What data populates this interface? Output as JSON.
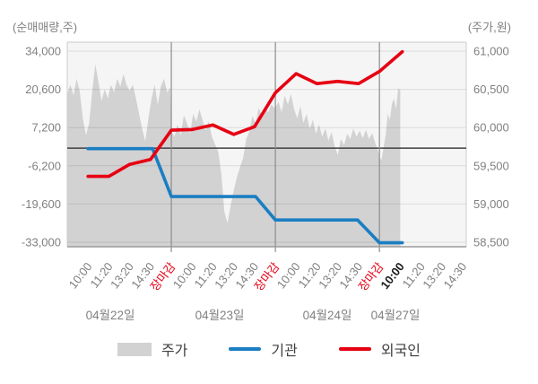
{
  "colors": {
    "red": "#e60012",
    "blue": "#1b7ec2",
    "area": "#d2d2d2",
    "plot_bg": "#f5f5f5",
    "frame": "#cccccc",
    "grid": "#d8d8d8",
    "zero_line": "#3f3f3f",
    "boundary": "#8c8c8c",
    "axis_line": "#9a9a9a",
    "tick_text": "#808080",
    "current_label": "#1a1a1a"
  },
  "legend": {
    "price_label": "주가",
    "institutions_label": "기관",
    "foreigners_label": "외국인"
  },
  "chart_data": {
    "type": "area+line combo (intraday price area on right axis, cumulative net-trading lines on left axis)",
    "left_axis": {
      "title": "(순매매량,주)",
      "range": [
        -33000,
        34000
      ],
      "ticks": [
        {
          "value": 34000,
          "label": "34,000"
        },
        {
          "value": 20600,
          "label": "20,600"
        },
        {
          "value": 7200,
          "label": "7,200"
        },
        {
          "value": -6200,
          "label": "-6,200"
        },
        {
          "value": -19600,
          "label": "-19,600"
        },
        {
          "value": -33000,
          "label": "-33,000"
        }
      ]
    },
    "right_axis": {
      "title": "(주가,원)",
      "range": [
        58500,
        61000
      ],
      "ticks": [
        {
          "value": 61000,
          "label": "61,000"
        },
        {
          "value": 60500,
          "label": "60,500"
        },
        {
          "value": 60000,
          "label": "60,000"
        },
        {
          "value": 59500,
          "label": "59,500"
        },
        {
          "value": 59000,
          "label": "59,000"
        },
        {
          "value": 58500,
          "label": "58,500"
        }
      ]
    },
    "x_ticks": [
      {
        "u": 1,
        "label": "10:00",
        "style": "normal"
      },
      {
        "u": 2,
        "label": "11:20",
        "style": "normal"
      },
      {
        "u": 3,
        "label": "13:20",
        "style": "normal"
      },
      {
        "u": 4,
        "label": "14:30",
        "style": "normal"
      },
      {
        "u": 5,
        "label": "장마감",
        "style": "close"
      },
      {
        "u": 6,
        "label": "10:00",
        "style": "normal"
      },
      {
        "u": 7,
        "label": "11:20",
        "style": "normal"
      },
      {
        "u": 8,
        "label": "13:20",
        "style": "normal"
      },
      {
        "u": 9,
        "label": "14:30",
        "style": "normal"
      },
      {
        "u": 10,
        "label": "장마감",
        "style": "close"
      },
      {
        "u": 11,
        "label": "10:00",
        "style": "normal"
      },
      {
        "u": 12,
        "label": "11:20",
        "style": "normal"
      },
      {
        "u": 13,
        "label": "13:20",
        "style": "normal"
      },
      {
        "u": 14,
        "label": "14:30",
        "style": "normal"
      },
      {
        "u": 15,
        "label": "장마감",
        "style": "close"
      },
      {
        "u": 16,
        "label": "10:00",
        "style": "current"
      },
      {
        "u": 17,
        "label": "11:20",
        "style": "normal"
      },
      {
        "u": 18,
        "label": "13:20",
        "style": "normal"
      },
      {
        "u": 19,
        "label": "14:30",
        "style": "normal"
      }
    ],
    "day_boundaries": [
      5,
      10,
      15
    ],
    "date_labels": [
      "04월22일",
      "04월23일",
      "04월24일",
      "04월27일"
    ],
    "date_label_x": [
      123,
      245,
      365,
      441
    ],
    "grid": true,
    "legend_position": "bottom",
    "series": [
      {
        "name": "주가",
        "name_en": "price",
        "type": "area",
        "axis": "right",
        "color": "#d2d2d2",
        "points": [
          [
            0,
            60440
          ],
          [
            0.15,
            60560
          ],
          [
            0.3,
            60420
          ],
          [
            0.45,
            60640
          ],
          [
            0.6,
            60480
          ],
          [
            0.75,
            60120
          ],
          [
            0.9,
            59900
          ],
          [
            1.05,
            60060
          ],
          [
            1.2,
            60480
          ],
          [
            1.35,
            60830
          ],
          [
            1.5,
            60600
          ],
          [
            1.65,
            60350
          ],
          [
            1.8,
            60500
          ],
          [
            1.95,
            60380
          ],
          [
            2.1,
            60560
          ],
          [
            2.25,
            60460
          ],
          [
            2.4,
            60640
          ],
          [
            2.55,
            60540
          ],
          [
            2.7,
            60700
          ],
          [
            2.85,
            60560
          ],
          [
            3,
            60480
          ],
          [
            3.15,
            60560
          ],
          [
            3.3,
            60380
          ],
          [
            3.45,
            60180
          ],
          [
            3.6,
            59980
          ],
          [
            3.75,
            59820
          ],
          [
            3.9,
            60120
          ],
          [
            4.05,
            60380
          ],
          [
            4.2,
            60560
          ],
          [
            4.35,
            60300
          ],
          [
            4.5,
            60540
          ],
          [
            4.65,
            60640
          ],
          [
            4.8,
            60460
          ],
          [
            4.95,
            60520
          ],
          [
            5,
            59960
          ],
          [
            5.15,
            59880
          ],
          [
            5.3,
            60040
          ],
          [
            5.45,
            59900
          ],
          [
            5.6,
            60160
          ],
          [
            5.75,
            60060
          ],
          [
            5.9,
            59920
          ],
          [
            6.05,
            60180
          ],
          [
            6.2,
            60080
          ],
          [
            6.35,
            60240
          ],
          [
            6.5,
            60100
          ],
          [
            6.65,
            59960
          ],
          [
            6.8,
            60080
          ],
          [
            6.95,
            59880
          ],
          [
            7.1,
            59780
          ],
          [
            7.25,
            59690
          ],
          [
            7.4,
            59400
          ],
          [
            7.55,
            58900
          ],
          [
            7.7,
            58750
          ],
          [
            7.85,
            58980
          ],
          [
            8,
            59180
          ],
          [
            8.15,
            59350
          ],
          [
            8.3,
            59480
          ],
          [
            8.45,
            59600
          ],
          [
            8.6,
            59850
          ],
          [
            8.75,
            59950
          ],
          [
            8.9,
            60150
          ],
          [
            9.05,
            60050
          ],
          [
            9.2,
            60260
          ],
          [
            9.35,
            60150
          ],
          [
            9.5,
            60280
          ],
          [
            9.65,
            60200
          ],
          [
            9.8,
            60300
          ],
          [
            9.95,
            60260
          ],
          [
            10,
            60260
          ],
          [
            10.15,
            60340
          ],
          [
            10.3,
            60200
          ],
          [
            10.45,
            60420
          ],
          [
            10.6,
            60300
          ],
          [
            10.75,
            60440
          ],
          [
            10.9,
            60240
          ],
          [
            11.05,
            60120
          ],
          [
            11.2,
            60280
          ],
          [
            11.35,
            60060
          ],
          [
            11.5,
            60180
          ],
          [
            11.65,
            59980
          ],
          [
            11.8,
            60100
          ],
          [
            11.95,
            59920
          ],
          [
            12.1,
            60040
          ],
          [
            12.25,
            59880
          ],
          [
            12.4,
            59990
          ],
          [
            12.55,
            59830
          ],
          [
            12.7,
            59940
          ],
          [
            12.85,
            59760
          ],
          [
            13,
            59640
          ],
          [
            13.15,
            59850
          ],
          [
            13.3,
            59770
          ],
          [
            13.45,
            59920
          ],
          [
            13.6,
            59850
          ],
          [
            13.75,
            59990
          ],
          [
            13.9,
            59880
          ],
          [
            14.05,
            59960
          ],
          [
            14.2,
            59860
          ],
          [
            14.35,
            59970
          ],
          [
            14.5,
            59850
          ],
          [
            14.65,
            59930
          ],
          [
            14.8,
            59800
          ],
          [
            14.95,
            59680
          ],
          [
            15,
            59600
          ],
          [
            15.1,
            59580
          ],
          [
            15.2,
            59740
          ],
          [
            15.3,
            59900
          ],
          [
            15.4,
            60180
          ],
          [
            15.5,
            60100
          ],
          [
            15.6,
            60310
          ],
          [
            15.7,
            60380
          ],
          [
            15.8,
            60240
          ],
          [
            15.9,
            60515
          ],
          [
            16,
            60490
          ]
        ]
      },
      {
        "name": "기관",
        "name_en": "institutions",
        "type": "line",
        "axis": "left",
        "color": "#1b7ec2",
        "points": [
          [
            1,
            -200
          ],
          [
            4.1,
            -200
          ],
          [
            5,
            -17000
          ],
          [
            9.05,
            -17000
          ],
          [
            10,
            -25200
          ],
          [
            13.95,
            -25200
          ],
          [
            15,
            -33200
          ],
          [
            16.1,
            -33200
          ]
        ]
      },
      {
        "name": "외국인",
        "name_en": "foreigners",
        "type": "line",
        "axis": "left",
        "color": "#e60012",
        "points": [
          [
            1,
            -9900
          ],
          [
            2,
            -9900
          ],
          [
            3,
            -5700
          ],
          [
            4,
            -4000
          ],
          [
            5,
            6300
          ],
          [
            6,
            6500
          ],
          [
            7,
            8100
          ],
          [
            8,
            4800
          ],
          [
            9,
            7500
          ],
          [
            10,
            19400
          ],
          [
            11,
            26100
          ],
          [
            12,
            22600
          ],
          [
            13,
            23400
          ],
          [
            14,
            22600
          ],
          [
            15,
            26900
          ],
          [
            16.1,
            33800
          ]
        ]
      }
    ]
  }
}
